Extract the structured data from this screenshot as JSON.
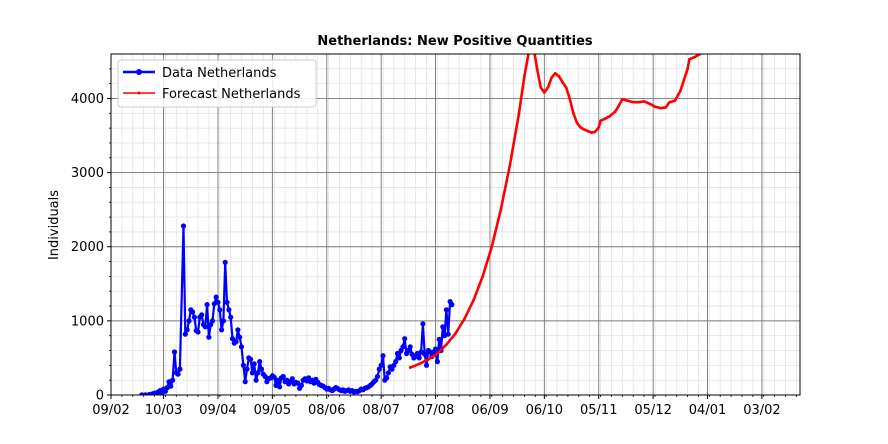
{
  "chart_data": {
    "type": "line",
    "title": "Netherlands: New Positive Quantities",
    "xlabel": "",
    "ylabel": "Individuals",
    "ylim": [
      0,
      4600
    ],
    "y_ticks": [
      0,
      1000,
      2000,
      3000,
      4000
    ],
    "y_tick_labels": [
      "0",
      "1000",
      "2000",
      "3000",
      "4000"
    ],
    "x_tick_labels": [
      "09/02",
      "10/03",
      "09/04",
      "09/05",
      "08/06",
      "08/07",
      "07/08",
      "06/09",
      "06/10",
      "05/11",
      "05/12",
      "04/01",
      "03/02"
    ],
    "x_tick_days": [
      0,
      29,
      59,
      89,
      119,
      149,
      179,
      209,
      239,
      269,
      299,
      329,
      359
    ],
    "xlim_days": [
      0,
      380
    ],
    "grid": true,
    "legend_position": "top-left",
    "series": [
      {
        "name": "Data Netherlands",
        "color": "#0000ff",
        "marker": "circle",
        "points": [
          [
            17,
            2
          ],
          [
            19,
            3
          ],
          [
            21,
            5
          ],
          [
            22,
            10
          ],
          [
            23,
            15
          ],
          [
            24,
            25
          ],
          [
            25,
            20
          ],
          [
            26,
            40
          ],
          [
            27,
            60
          ],
          [
            28,
            30
          ],
          [
            29,
            80
          ],
          [
            30,
            50
          ],
          [
            31,
            100
          ],
          [
            32,
            180
          ],
          [
            33,
            120
          ],
          [
            34,
            200
          ],
          [
            35,
            580
          ],
          [
            36,
            300
          ],
          [
            37,
            280
          ],
          [
            38,
            350
          ],
          [
            40,
            2280
          ],
          [
            41,
            820
          ],
          [
            42,
            880
          ],
          [
            43,
            1000
          ],
          [
            44,
            1150
          ],
          [
            45,
            1120
          ],
          [
            46,
            1050
          ],
          [
            47,
            870
          ],
          [
            48,
            850
          ],
          [
            49,
            1050
          ],
          [
            50,
            1080
          ],
          [
            51,
            950
          ],
          [
            52,
            920
          ],
          [
            53,
            1220
          ],
          [
            54,
            780
          ],
          [
            55,
            950
          ],
          [
            56,
            1000
          ],
          [
            57,
            1230
          ],
          [
            58,
            1320
          ],
          [
            59,
            1250
          ],
          [
            60,
            1150
          ],
          [
            61,
            880
          ],
          [
            62,
            1000
          ],
          [
            63,
            1790
          ],
          [
            64,
            1250
          ],
          [
            65,
            1150
          ],
          [
            66,
            1050
          ],
          [
            67,
            760
          ],
          [
            68,
            700
          ],
          [
            69,
            720
          ],
          [
            70,
            880
          ],
          [
            71,
            780
          ],
          [
            72,
            650
          ],
          [
            73,
            400
          ],
          [
            74,
            180
          ],
          [
            75,
            350
          ],
          [
            76,
            500
          ],
          [
            77,
            480
          ],
          [
            78,
            300
          ],
          [
            79,
            420
          ],
          [
            80,
            200
          ],
          [
            81,
            300
          ],
          [
            82,
            450
          ],
          [
            83,
            350
          ],
          [
            84,
            280
          ],
          [
            85,
            250
          ],
          [
            86,
            180
          ],
          [
            87,
            220
          ],
          [
            88,
            230
          ],
          [
            89,
            260
          ],
          [
            90,
            240
          ],
          [
            91,
            130
          ],
          [
            92,
            200
          ],
          [
            93,
            110
          ],
          [
            94,
            230
          ],
          [
            95,
            250
          ],
          [
            96,
            180
          ],
          [
            97,
            200
          ],
          [
            98,
            150
          ],
          [
            99,
            180
          ],
          [
            100,
            220
          ],
          [
            101,
            150
          ],
          [
            102,
            170
          ],
          [
            103,
            160
          ],
          [
            104,
            90
          ],
          [
            105,
            130
          ],
          [
            106,
            200
          ],
          [
            107,
            220
          ],
          [
            108,
            190
          ],
          [
            109,
            230
          ],
          [
            110,
            180
          ],
          [
            111,
            200
          ],
          [
            112,
            160
          ],
          [
            113,
            210
          ],
          [
            114,
            170
          ],
          [
            115,
            140
          ],
          [
            116,
            130
          ],
          [
            117,
            120
          ],
          [
            118,
            100
          ],
          [
            119,
            80
          ],
          [
            120,
            90
          ],
          [
            121,
            70
          ],
          [
            122,
            60
          ],
          [
            123,
            80
          ],
          [
            124,
            100
          ],
          [
            125,
            90
          ],
          [
            126,
            70
          ],
          [
            127,
            60
          ],
          [
            128,
            70
          ],
          [
            129,
            50
          ],
          [
            130,
            60
          ],
          [
            131,
            70
          ],
          [
            132,
            50
          ],
          [
            133,
            60
          ],
          [
            134,
            40
          ],
          [
            135,
            50
          ],
          [
            136,
            45
          ],
          [
            137,
            60
          ],
          [
            138,
            80
          ],
          [
            139,
            70
          ],
          [
            140,
            90
          ],
          [
            141,
            100
          ],
          [
            142,
            110
          ],
          [
            143,
            130
          ],
          [
            144,
            150
          ],
          [
            145,
            180
          ],
          [
            146,
            200
          ],
          [
            147,
            250
          ],
          [
            148,
            350
          ],
          [
            149,
            400
          ],
          [
            150,
            530
          ],
          [
            151,
            200
          ],
          [
            152,
            230
          ],
          [
            153,
            300
          ],
          [
            154,
            380
          ],
          [
            155,
            350
          ],
          [
            156,
            400
          ],
          [
            157,
            450
          ],
          [
            158,
            560
          ],
          [
            159,
            500
          ],
          [
            160,
            600
          ],
          [
            161,
            650
          ],
          [
            162,
            760
          ],
          [
            163,
            560
          ],
          [
            164,
            600
          ],
          [
            165,
            650
          ],
          [
            166,
            550
          ],
          [
            167,
            500
          ],
          [
            168,
            520
          ],
          [
            169,
            560
          ],
          [
            170,
            500
          ],
          [
            171,
            580
          ],
          [
            172,
            960
          ],
          [
            173,
            550
          ],
          [
            174,
            400
          ],
          [
            175,
            600
          ],
          [
            176,
            580
          ],
          [
            177,
            520
          ],
          [
            178,
            580
          ],
          [
            179,
            620
          ],
          [
            180,
            450
          ],
          [
            181,
            750
          ],
          [
            182,
            600
          ],
          [
            183,
            920
          ],
          [
            184,
            800
          ],
          [
            185,
            1150
          ],
          [
            186,
            820
          ],
          [
            187,
            1260
          ],
          [
            188,
            1220
          ]
        ]
      },
      {
        "name": "Forecast Netherlands",
        "color": "#ff0000",
        "marker": "point",
        "points": [
          [
            165,
            370
          ],
          [
            170,
            420
          ],
          [
            175,
            480
          ],
          [
            180,
            560
          ],
          [
            185,
            680
          ],
          [
            190,
            830
          ],
          [
            195,
            1030
          ],
          [
            200,
            1280
          ],
          [
            205,
            1600
          ],
          [
            210,
            2000
          ],
          [
            215,
            2500
          ],
          [
            220,
            3100
          ],
          [
            225,
            3800
          ],
          [
            228,
            4300
          ],
          [
            231,
            4700
          ],
          [
            233,
            4700
          ],
          [
            235,
            4400
          ],
          [
            237,
            4150
          ],
          [
            239,
            4080
          ],
          [
            241,
            4150
          ],
          [
            243,
            4280
          ],
          [
            245,
            4340
          ],
          [
            247,
            4300
          ],
          [
            249,
            4220
          ],
          [
            251,
            4150
          ],
          [
            253,
            4000
          ],
          [
            255,
            3800
          ],
          [
            257,
            3670
          ],
          [
            259,
            3610
          ],
          [
            261,
            3580
          ],
          [
            263,
            3560
          ],
          [
            265,
            3540
          ],
          [
            267,
            3550
          ],
          [
            269,
            3610
          ],
          [
            270,
            3700
          ],
          [
            272,
            3720
          ],
          [
            275,
            3760
          ],
          [
            278,
            3820
          ],
          [
            280,
            3900
          ],
          [
            282,
            3990
          ],
          [
            285,
            3970
          ],
          [
            288,
            3950
          ],
          [
            291,
            3950
          ],
          [
            294,
            3960
          ],
          [
            297,
            3930
          ],
          [
            300,
            3890
          ],
          [
            303,
            3870
          ],
          [
            306,
            3880
          ],
          [
            308,
            3950
          ],
          [
            311,
            3970
          ],
          [
            314,
            4100
          ],
          [
            316,
            4250
          ],
          [
            318,
            4400
          ],
          [
            319,
            4530
          ],
          [
            322,
            4560
          ],
          [
            325,
            4600
          ]
        ]
      }
    ]
  }
}
